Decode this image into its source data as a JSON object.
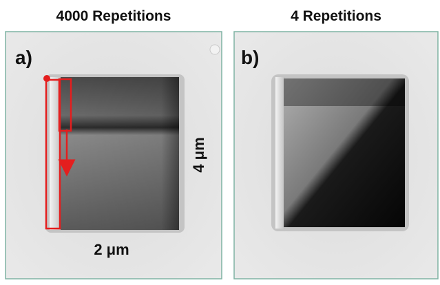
{
  "panels": [
    {
      "title": "4000 Repetitions",
      "label": "a)",
      "width_label": "2 μm",
      "height_label": "4 μm"
    },
    {
      "title": "4 Repetitions",
      "label": "b)"
    }
  ]
}
